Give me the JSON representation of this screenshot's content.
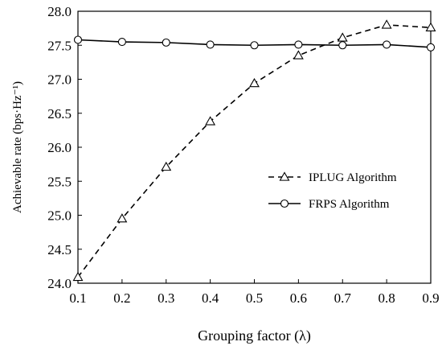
{
  "chart_data": {
    "type": "line",
    "xlabel": "Grouping factor (λ)",
    "ylabel": "Achievable rate (bps·Hz⁻¹)",
    "xlim": [
      0.1,
      0.9
    ],
    "ylim": [
      24.0,
      28.0
    ],
    "x_ticks": [
      "0.1",
      "0.2",
      "0.3",
      "0.4",
      "0.5",
      "0.6",
      "0.7",
      "0.8",
      "0.9"
    ],
    "y_ticks": [
      "24.0",
      "24.5",
      "25.0",
      "25.5",
      "26.0",
      "26.5",
      "27.0",
      "27.5",
      "28.0"
    ],
    "x": [
      0.1,
      0.2,
      0.3,
      0.4,
      0.5,
      0.6,
      0.7,
      0.8,
      0.9
    ],
    "grid": false,
    "legend_position": "center-right",
    "series": [
      {
        "name": "IPLUG Algorithm",
        "values": [
          24.09,
          24.95,
          25.71,
          26.38,
          26.94,
          27.35,
          27.61,
          27.8,
          27.76
        ],
        "line_style": "dashed",
        "marker": "triangle",
        "color": "#000000"
      },
      {
        "name": "FRPS Algorithm",
        "values": [
          27.58,
          27.55,
          27.54,
          27.51,
          27.5,
          27.51,
          27.5,
          27.51,
          27.47
        ],
        "line_style": "solid",
        "marker": "circle",
        "color": "#000000"
      }
    ]
  }
}
